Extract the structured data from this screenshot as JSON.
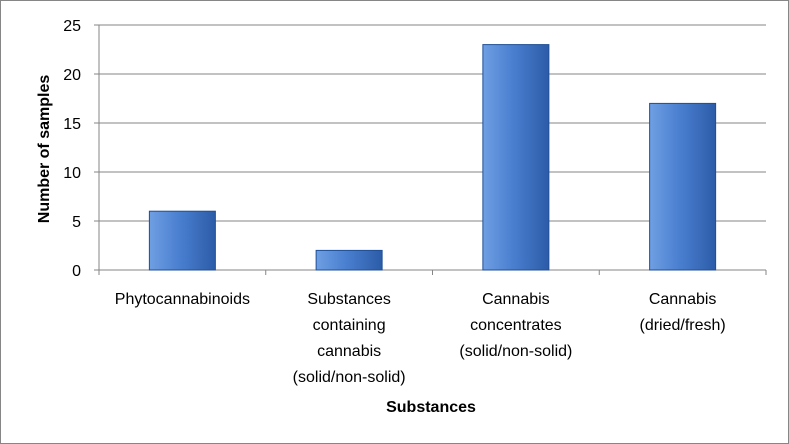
{
  "chart_data": {
    "type": "bar",
    "title": "",
    "xlabel": "Substances",
    "ylabel": "Number of samples",
    "categories": [
      [
        "Phytocannabinoids"
      ],
      [
        "Substances",
        "containing",
        "cannabis",
        "(solid/non-solid)"
      ],
      [
        "Cannabis",
        "concentrates",
        "(solid/non-solid)"
      ],
      [
        "Cannabis",
        "(dried/fresh)"
      ]
    ],
    "values": [
      6,
      2,
      23,
      17
    ],
    "ylim": [
      0,
      25
    ],
    "yticks": [
      0,
      5,
      10,
      15,
      20,
      25
    ],
    "grid": true,
    "legend": "none",
    "colors": {
      "bar_light": "#6f9fe3",
      "bar_mid": "#4a7fd0",
      "bar_dark": "#2c5ca8",
      "bar_edge": "#1f4f96",
      "gridline": "#868686",
      "axis": "#868686"
    }
  }
}
